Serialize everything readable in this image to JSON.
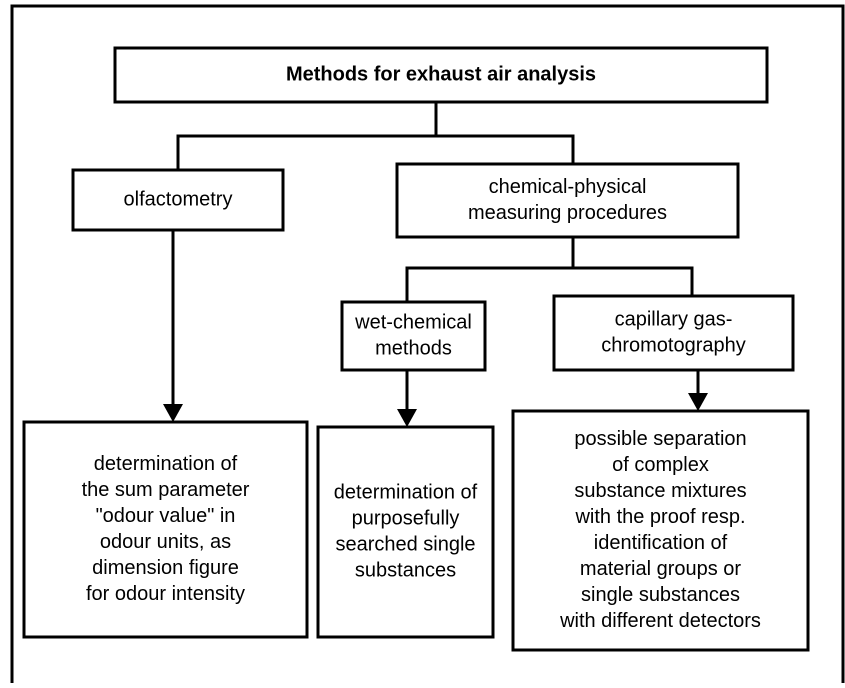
{
  "nodes": [
    {
      "lines": [
        "Methods for exhaust air analysis"
      ]
    },
    {
      "lines": [
        "olfactometry"
      ]
    },
    {
      "lines": [
        "chemical-physical",
        "measuring procedures"
      ]
    },
    {
      "lines": [
        "wet-chemical",
        "methods"
      ]
    },
    {
      "lines": [
        "capillary gas-",
        "chromotography"
      ]
    },
    {
      "lines": [
        "determination of",
        "the sum parameter",
        "\"odour value\" in",
        "odour units, as",
        "dimension figure",
        "for odour intensity"
      ]
    },
    {
      "lines": [
        "determination of",
        "purposefully",
        "searched single",
        "substances"
      ]
    },
    {
      "lines": [
        "possible separation",
        "of complex",
        "substance mixtures",
        "with the proof  resp.",
        "identification of",
        "material groups or",
        "single substances",
        "with different detectors"
      ]
    }
  ]
}
